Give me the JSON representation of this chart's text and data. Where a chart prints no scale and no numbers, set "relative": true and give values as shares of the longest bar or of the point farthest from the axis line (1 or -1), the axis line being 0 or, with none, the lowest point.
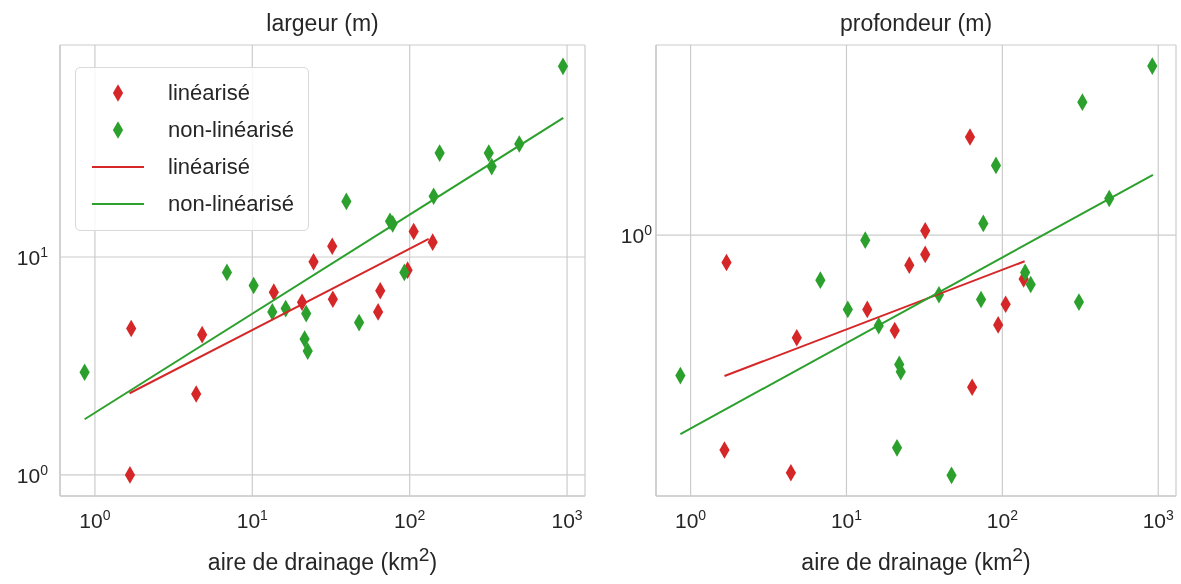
{
  "chart_data": [
    {
      "type": "scatter",
      "title": "largeur (m)",
      "xlabel": "aire de drainage (km$^{2}$)",
      "log": "xy",
      "grid": true,
      "legend": "top left",
      "xlim": [
        0.6,
        1300
      ],
      "xticks": [
        {
          "value": 1,
          "label": "10$^{0}$"
        },
        {
          "value": 10,
          "label": "10$^{1}$"
        },
        {
          "value": 100,
          "label": "10$^{2}$"
        },
        {
          "value": 1000,
          "label": "10$^{3}$"
        }
      ],
      "ylim": [
        0.8,
        94
      ],
      "yticks": [
        {
          "value": 1,
          "label": "10$^{0}$"
        },
        {
          "value": 10,
          "label": "10$^{1}$"
        }
      ],
      "series": [
        {
          "name": "linéarisé",
          "color": "#d62728",
          "marker": "diamond",
          "x": [
            1.67,
            1.7,
            4.4,
            4.8,
            13.7,
            20.7,
            24.5,
            32.2,
            32.5,
            63,
            65,
            97,
            106,
            140
          ],
          "values": [
            1.0,
            4.7,
            2.35,
            4.4,
            6.9,
            6.2,
            9.5,
            11.2,
            6.4,
            5.6,
            7.0,
            8.7,
            13.1,
            11.7
          ]
        },
        {
          "name": "non-linéarisé",
          "color": "#2ca02c",
          "marker": "diamond",
          "x": [
            0.86,
            6.9,
            10.2,
            13.4,
            16.3,
            22,
            21.5,
            22.5,
            47.7,
            39.6,
            75,
            78,
            92.5,
            142,
            155,
            318,
            332,
            497,
            942
          ],
          "values": [
            2.96,
            8.5,
            7.4,
            5.6,
            5.8,
            5.5,
            4.2,
            3.7,
            5.0,
            18,
            14.6,
            14.2,
            8.5,
            19,
            30,
            30,
            26,
            33,
            75
          ]
        },
        {
          "type": "line",
          "name": "linéarisé",
          "color": "#d62728",
          "marker": "none",
          "x": [
            1.66,
            132
          ],
          "values": [
            2.37,
            12.1
          ]
        },
        {
          "type": "line",
          "name": "non-linéarisé",
          "color": "#2ca02c",
          "marker": "none",
          "x": [
            0.86,
            946
          ],
          "values": [
            1.8,
            43.5
          ]
        }
      ]
    },
    {
      "type": "scatter",
      "title": "profondeur (m)",
      "xlabel": "aire de drainage (km$^{2}$)",
      "log": "x",
      "relative": true,
      "grid": true,
      "xlim": [
        0.6,
        1300
      ],
      "xticks": [
        {
          "value": 1,
          "label": "10$^{0}$"
        },
        {
          "value": 10,
          "label": "10$^{1}$"
        },
        {
          "value": 100,
          "label": "10$^{2}$"
        },
        {
          "value": 1000,
          "label": "10$^{3}$"
        }
      ],
      "ref_lines": [
        {
          "axis": "y",
          "value": 0.607,
          "color": "#cccccc"
        }
      ],
      "annotations": [
        "10$^{0}$"
      ],
      "series": [
        {
          "color": "#d62728",
          "marker": "diamond",
          "x": [
            1.7,
            1.65,
            4.4,
            4.8,
            13.6,
            20.4,
            25.3,
            32,
            32,
            62,
            64,
            94,
            105,
            137
          ],
          "values": [
            0.543,
            0.107,
            0.054,
            0.368,
            0.434,
            0.385,
            0.537,
            0.562,
            0.617,
            0.835,
            0.253,
            0.398,
            0.446,
            0.505
          ]
        },
        {
          "color": "#2ca02c",
          "marker": "diamond",
          "x": [
            0.86,
            6.8,
            10.2,
            13.2,
            16.1,
            21.8,
            22.3,
            21.1,
            39.2,
            47.2,
            73,
            75.5,
            91,
            140,
            152,
            310,
            326,
            485,
            916
          ],
          "values": [
            0.28,
            0.502,
            0.434,
            0.595,
            0.396,
            0.306,
            0.289,
            0.112,
            0.468,
            0.048,
            0.457,
            0.634,
            0.769,
            0.52,
            0.492,
            0.451,
            0.916,
            0.692,
            1.0
          ]
        },
        {
          "type": "line",
          "color": "#d62728",
          "marker": "none",
          "x": [
            1.65,
            139
          ],
          "values": [
            0.279,
            0.546
          ]
        },
        {
          "type": "line",
          "color": "#2ca02c",
          "marker": "none",
          "x": [
            0.86,
            925
          ],
          "values": [
            0.144,
            0.747
          ]
        }
      ]
    }
  ]
}
